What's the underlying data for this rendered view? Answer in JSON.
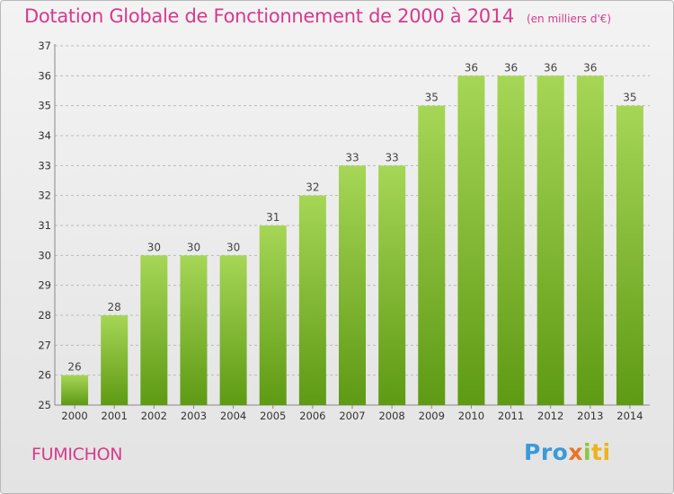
{
  "header": {
    "title": "Dotation Globale de Fonctionnement de 2000 à 2014",
    "unit": "(en milliers d'€)"
  },
  "footer": {
    "commune": "FUMICHON",
    "logo": {
      "p1": "Pro",
      "p2": "x",
      "p3": "i",
      "p4": "ti"
    }
  },
  "colors": {
    "title": "#d63a8c",
    "bar_top": "#a6d656",
    "bar_bottom": "#5e9a14",
    "grid": "#bbbbbb"
  },
  "chart_data": {
    "type": "bar",
    "title": "Dotation Globale de Fonctionnement de 2000 à 2014",
    "subtitle": "(en milliers d'€)",
    "xlabel": "",
    "ylabel": "",
    "categories": [
      "2000",
      "2001",
      "2002",
      "2003",
      "2004",
      "2005",
      "2006",
      "2007",
      "2008",
      "2009",
      "2010",
      "2011",
      "2012",
      "2013",
      "2014"
    ],
    "values": [
      26,
      28,
      30,
      30,
      30,
      31,
      32,
      33,
      33,
      35,
      36,
      36,
      36,
      36,
      35
    ],
    "ylim": [
      25,
      37
    ],
    "yticks": [
      25,
      26,
      27,
      28,
      29,
      30,
      31,
      32,
      33,
      34,
      35,
      36,
      37
    ],
    "grid": true,
    "grid_style": "dashed-horizontal"
  }
}
